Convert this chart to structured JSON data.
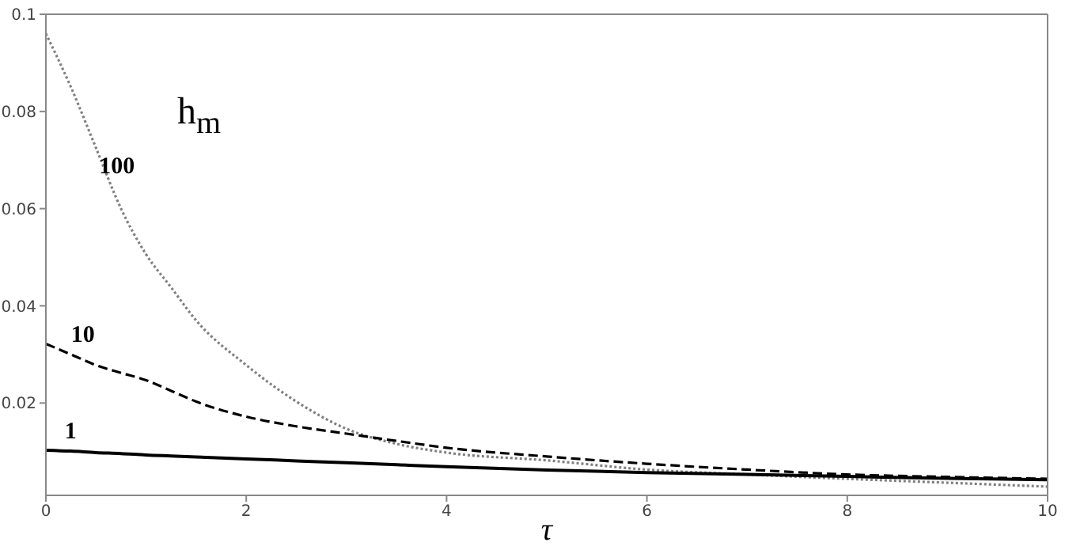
{
  "chart_data": {
    "type": "line",
    "xlabel": "τ",
    "ylabel": "h$_{m}$",
    "xlim": [
      0,
      10
    ],
    "xticks": [
      0,
      2,
      4,
      6,
      8,
      10
    ],
    "ylim": [
      0.001,
      0.1
    ],
    "yticks": [
      0.02,
      0.04,
      0.06,
      0.08,
      0.1
    ],
    "x": [
      0,
      0.25,
      0.5,
      0.75,
      1,
      1.25,
      1.5,
      2,
      2.5,
      3,
      3.5,
      4,
      5,
      6,
      7,
      8,
      9,
      10
    ],
    "series": [
      {
        "name": "100",
        "color": "#808080",
        "line_style": "dotted",
        "values": [
          0.096,
          0.085,
          0.0725,
          0.06,
          0.0506,
          0.0438,
          0.037,
          0.0278,
          0.0203,
          0.0147,
          0.0116,
          0.0098,
          0.0082,
          0.0063,
          0.0053,
          0.0044,
          0.0036,
          0.0028
        ]
      },
      {
        "name": "10",
        "color": "#000000",
        "line_style": "dashed",
        "values": [
          0.0322,
          0.03,
          0.0278,
          0.0262,
          0.0247,
          0.0225,
          0.0203,
          0.0172,
          0.0152,
          0.0137,
          0.0122,
          0.0108,
          0.009,
          0.0075,
          0.0063,
          0.0053,
          0.0048,
          0.0044
        ]
      },
      {
        "name": "1",
        "color": "#000000",
        "line_style": "solid",
        "values": [
          0.0103,
          0.0101,
          0.0098,
          0.0096,
          0.0093,
          0.0091,
          0.0089,
          0.0085,
          0.0081,
          0.0077,
          0.0073,
          0.0069,
          0.0062,
          0.0057,
          0.0053,
          0.0049,
          0.0045,
          0.0042
        ]
      }
    ]
  }
}
